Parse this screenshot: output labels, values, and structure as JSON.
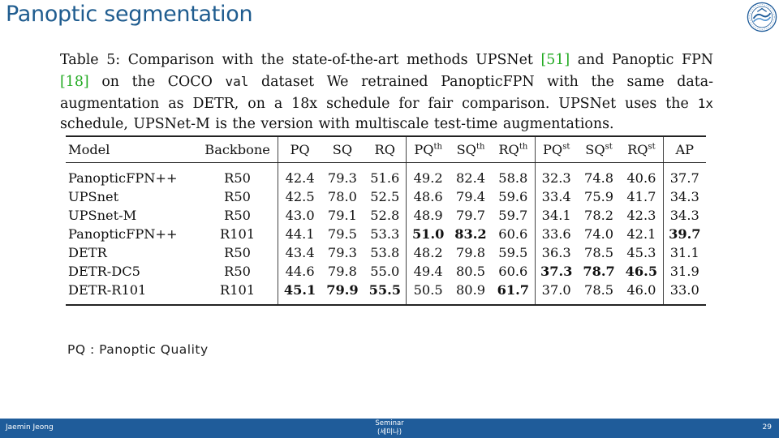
{
  "slide": {
    "title": "Panoptic segmentation",
    "note": "PQ : Panoptic Quality"
  },
  "logo": {
    "icon": "university-seal-icon",
    "accent": "#1f5c9a"
  },
  "caption": {
    "p1": "Table 5: Comparison with the state-of-the-art methods UPSNet ",
    "ref1": "[51]",
    "p2": " and Panoptic FPN ",
    "ref2": "[18]",
    "p3": " on the COCO ",
    "code1": "val",
    "p4": " dataset We retrained PanopticFPN with the same data-augmentation as DETR, on a 18x schedule for fair comparison. UPSNet uses the ",
    "code2": "1x",
    "p5": " schedule, UPSNet-M is the version with multiscale test-time augmentations."
  },
  "table": {
    "h_model": "Model",
    "h_backbone": "Backbone",
    "h_pq": "PQ",
    "h_sq": "SQ",
    "h_rq": "RQ",
    "h_pq_th_base": "PQ",
    "h_pq_th_sup": "th",
    "h_sq_th_base": "SQ",
    "h_sq_th_sup": "th",
    "h_rq_th_base": "RQ",
    "h_rq_th_sup": "th",
    "h_pq_st_base": "PQ",
    "h_pq_st_sup": "st",
    "h_sq_st_base": "SQ",
    "h_sq_st_sup": "st",
    "h_rq_st_base": "RQ",
    "h_rq_st_sup": "st",
    "h_ap": "AP",
    "rows": [
      {
        "model": "PanopticFPN++",
        "backbone": "R50",
        "pq": "42.4",
        "sq": "79.3",
        "rq": "51.6",
        "pq_th": "49.2",
        "sq_th": "82.4",
        "rq_th": "58.8",
        "pq_st": "32.3",
        "sq_st": "74.8",
        "rq_st": "40.6",
        "ap": "37.7"
      },
      {
        "model": "UPSnet",
        "backbone": "R50",
        "pq": "42.5",
        "sq": "78.0",
        "rq": "52.5",
        "pq_th": "48.6",
        "sq_th": "79.4",
        "rq_th": "59.6",
        "pq_st": "33.4",
        "sq_st": "75.9",
        "rq_st": "41.7",
        "ap": "34.3"
      },
      {
        "model": "UPSnet-M",
        "backbone": "R50",
        "pq": "43.0",
        "sq": "79.1",
        "rq": "52.8",
        "pq_th": "48.9",
        "sq_th": "79.7",
        "rq_th": "59.7",
        "pq_st": "34.1",
        "sq_st": "78.2",
        "rq_st": "42.3",
        "ap": "34.3"
      },
      {
        "model": "PanopticFPN++",
        "backbone": "R101",
        "pq": "44.1",
        "sq": "79.5",
        "rq": "53.3",
        "pq_th": "51.0",
        "sq_th": "83.2",
        "rq_th": "60.6",
        "pq_st": "33.6",
        "sq_st": "74.0",
        "rq_st": "42.1",
        "ap": "39.7"
      },
      {
        "model": "DETR",
        "backbone": "R50",
        "pq": "43.4",
        "sq": "79.3",
        "rq": "53.8",
        "pq_th": "48.2",
        "sq_th": "79.8",
        "rq_th": "59.5",
        "pq_st": "36.3",
        "sq_st": "78.5",
        "rq_st": "45.3",
        "ap": "31.1"
      },
      {
        "model": "DETR-DC5",
        "backbone": "R50",
        "pq": "44.6",
        "sq": "79.8",
        "rq": "55.0",
        "pq_th": "49.4",
        "sq_th": "80.5",
        "rq_th": "60.6",
        "pq_st": "37.3",
        "sq_st": "78.7",
        "rq_st": "46.5",
        "ap": "31.9"
      },
      {
        "model": "DETR-R101",
        "backbone": "R101",
        "pq": "45.1",
        "sq": "79.9",
        "rq": "55.5",
        "pq_th": "50.5",
        "sq_th": "80.9",
        "rq_th": "61.7",
        "pq_st": "37.0",
        "sq_st": "78.5",
        "rq_st": "46.0",
        "ap": "33.0"
      }
    ]
  },
  "footer": {
    "author": "Jaemin Jeong",
    "center_line1": "Seminar",
    "center_line2": "(세미나)",
    "page": "29"
  }
}
